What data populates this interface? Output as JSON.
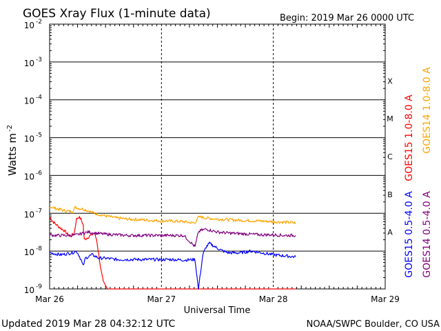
{
  "chart_data": {
    "type": "line",
    "title": "GOES Xray Flux (1-minute data)",
    "begin_label": "Begin:  2019 Mar 26 0000 UTC",
    "xlabel": "Universal Time",
    "ylabel": "Watts m",
    "ylabel_superscript": "-2",
    "y_scale": "log",
    "ylim": [
      1e-09,
      0.01
    ],
    "y_ticks": [
      {
        "base": "10",
        "exp": "-9"
      },
      {
        "base": "10",
        "exp": "-8"
      },
      {
        "base": "10",
        "exp": "-7"
      },
      {
        "base": "10",
        "exp": "-6"
      },
      {
        "base": "10",
        "exp": "-5"
      },
      {
        "base": "10",
        "exp": "-4"
      },
      {
        "base": "10",
        "exp": "-3"
      },
      {
        "base": "10",
        "exp": "-2"
      }
    ],
    "x_unit": "days since 2019 Mar 26 00:00 UTC",
    "xlim": [
      0,
      3
    ],
    "x_ticks": [
      "Mar 26",
      "Mar 27",
      "Mar 28",
      "Mar 29"
    ],
    "flare_classes": [
      "A",
      "B",
      "C",
      "M",
      "X"
    ],
    "grid": "major decades",
    "series": [
      {
        "name": "GOES15 1.0-8.0 A",
        "color": "#ff0000",
        "x": [
          0.0,
          0.03,
          0.06,
          0.1,
          0.13,
          0.16,
          0.19,
          0.22,
          0.24,
          0.26,
          0.28,
          0.3,
          0.31,
          0.33,
          0.36,
          0.4,
          0.42,
          0.44,
          0.46,
          0.48,
          0.5,
          0.52,
          0.55,
          0.6,
          0.65,
          0.7,
          0.8,
          0.9,
          1.0,
          1.2,
          1.4,
          1.6,
          1.8,
          2.0,
          2.2
        ],
        "y": [
          8e-08,
          6e-08,
          5e-08,
          4e-08,
          3.5e-08,
          2.8e-08,
          2.5e-08,
          3e-08,
          7e-08,
          8e-08,
          7e-08,
          5e-08,
          2e-08,
          2.2e-08,
          2.5e-08,
          3e-08,
          2e-08,
          8e-09,
          3e-09,
          1.5e-09,
          1.2e-09,
          1e-09,
          1e-09,
          1e-09,
          1e-09,
          1e-09,
          1e-09,
          1e-09,
          1e-09,
          1e-09,
          1e-09,
          1e-09,
          1e-09,
          1e-09,
          1e-09
        ]
      },
      {
        "name": "GOES14 1.0-8.0 A",
        "color": "#ffa500",
        "x": [
          0.0,
          0.05,
          0.1,
          0.15,
          0.2,
          0.23,
          0.26,
          0.3,
          0.35,
          0.4,
          0.5,
          0.6,
          0.7,
          0.8,
          0.9,
          1.0,
          1.1,
          1.2,
          1.3,
          1.32,
          1.35,
          1.4,
          1.5,
          1.6,
          1.7,
          1.8,
          1.9,
          2.0,
          2.1,
          2.2
        ],
        "y": [
          1.5e-07,
          1.35e-07,
          1.25e-07,
          1.15e-07,
          1.1e-07,
          1.45e-07,
          1.35e-07,
          1.3e-07,
          1.15e-07,
          1e-07,
          8.5e-08,
          7.5e-08,
          7e-08,
          6.8e-08,
          6.5e-08,
          6.3e-08,
          6.2e-08,
          6e-08,
          5.5e-08,
          7.5e-08,
          8e-08,
          7.5e-08,
          7e-08,
          6.8e-08,
          6.5e-08,
          6.4e-08,
          6.2e-08,
          6e-08,
          5.8e-08,
          5.6e-08
        ]
      },
      {
        "name": "GOES15 0.5-4.0 A",
        "color": "#0000ff",
        "x": [
          0.0,
          0.05,
          0.1,
          0.15,
          0.2,
          0.24,
          0.26,
          0.28,
          0.3,
          0.32,
          0.34,
          0.36,
          0.38,
          0.4,
          0.42,
          0.44,
          0.5,
          0.6,
          0.7,
          0.8,
          0.9,
          1.0,
          1.1,
          1.2,
          1.3,
          1.33,
          1.37,
          1.4,
          1.43,
          1.46,
          1.5,
          1.55,
          1.6,
          1.7,
          1.8,
          1.9,
          2.0,
          2.1,
          2.2
        ],
        "y": [
          9e-09,
          8.5e-09,
          8e-09,
          8.5e-09,
          9e-09,
          1e-08,
          8e-09,
          6e-09,
          4e-09,
          6.5e-09,
          7e-09,
          7.5e-09,
          8e-09,
          7.5e-09,
          7e-09,
          6.5e-09,
          6.5e-09,
          6e-09,
          6e-09,
          6e-09,
          6e-09,
          6e-09,
          6e-09,
          5.8e-09,
          6e-09,
          1e-09,
          8e-09,
          1.3e-08,
          1.6e-08,
          1.4e-08,
          1.2e-08,
          1e-08,
          9e-09,
          9e-09,
          1e-08,
          9e-09,
          8e-09,
          7.5e-09,
          7e-09
        ]
      },
      {
        "name": "GOES14 0.5-4.0 A",
        "color": "#800080",
        "x": [
          0.0,
          0.05,
          0.1,
          0.15,
          0.2,
          0.25,
          0.3,
          0.35,
          0.4,
          0.5,
          0.6,
          0.7,
          0.8,
          0.9,
          1.0,
          1.1,
          1.2,
          1.3,
          1.33,
          1.36,
          1.4,
          1.45,
          1.5,
          1.6,
          1.7,
          1.8,
          1.9,
          2.0,
          2.1,
          2.2
        ],
        "y": [
          2.7e-08,
          2.6e-08,
          2.6e-08,
          2.6e-08,
          2.6e-08,
          2.7e-08,
          3e-08,
          3.2e-08,
          3e-08,
          2.8e-08,
          2.7e-08,
          2.6e-08,
          2.6e-08,
          2.6e-08,
          2.6e-08,
          2.6e-08,
          2.6e-08,
          1.3e-08,
          3.2e-08,
          3.6e-08,
          3.8e-08,
          3.5e-08,
          3.2e-08,
          3e-08,
          2.9e-08,
          2.8e-08,
          2.7e-08,
          2.7e-08,
          2.6e-08,
          2.6e-08
        ]
      }
    ]
  },
  "footer": {
    "updated": "Updated 2019 Mar 28 04:32:12 UTC",
    "credit": "NOAA/SWPC Boulder, CO USA"
  }
}
